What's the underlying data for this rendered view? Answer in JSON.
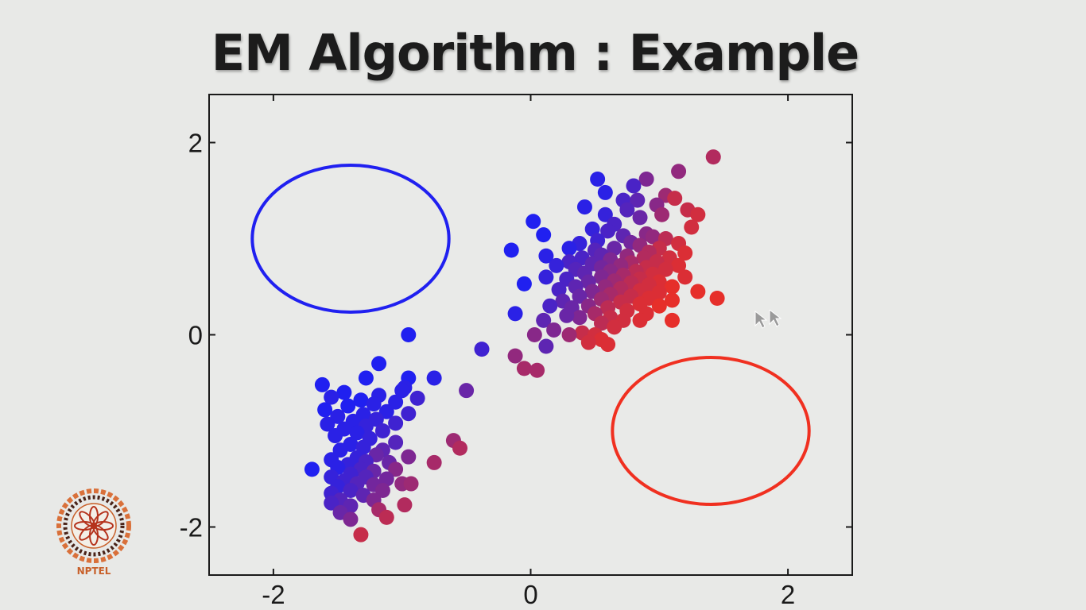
{
  "slide": {
    "title": "EM Algorithm : Example",
    "logo_text": "NPTEL"
  },
  "colors": {
    "background": "#e8e9e7",
    "cluster_a": "#2020f0",
    "cluster_b": "#f03020"
  },
  "chart_data": {
    "type": "scatter",
    "title": "",
    "xlabel": "",
    "ylabel": "",
    "xlim": [
      -2.5,
      2.5
    ],
    "ylim": [
      -2.5,
      2.5
    ],
    "xticks": [
      -2,
      0,
      2
    ],
    "yticks": [
      -2,
      0,
      2
    ],
    "xtick_labels": [
      "-2",
      "0",
      "2"
    ],
    "ytick_labels": [
      "-2",
      "0",
      "2"
    ],
    "grid": false,
    "points": [
      [
        1.42,
        1.85,
        0.7
      ],
      [
        1.15,
        1.7,
        0.55
      ],
      [
        0.9,
        1.62,
        0.45
      ],
      [
        0.52,
        1.62,
        0.05
      ],
      [
        0.8,
        1.55,
        0.2
      ],
      [
        0.58,
        1.48,
        0.05
      ],
      [
        1.05,
        1.45,
        0.6
      ],
      [
        1.12,
        1.42,
        0.8
      ],
      [
        0.72,
        1.4,
        0.2
      ],
      [
        0.83,
        1.4,
        0.3
      ],
      [
        0.98,
        1.35,
        0.5
      ],
      [
        0.42,
        1.33,
        0.05
      ],
      [
        0.75,
        1.3,
        0.25
      ],
      [
        1.22,
        1.3,
        0.8
      ],
      [
        1.3,
        1.25,
        0.85
      ],
      [
        1.02,
        1.25,
        0.6
      ],
      [
        0.58,
        1.25,
        0.1
      ],
      [
        0.85,
        1.22,
        0.35
      ],
      [
        0.02,
        1.18,
        0.0
      ],
      [
        0.65,
        1.15,
        0.2
      ],
      [
        1.25,
        1.12,
        0.85
      ],
      [
        0.48,
        1.1,
        0.1
      ],
      [
        0.6,
        1.08,
        0.2
      ],
      [
        0.9,
        1.05,
        0.5
      ],
      [
        0.1,
        1.04,
        0.0
      ],
      [
        0.72,
        1.03,
        0.3
      ],
      [
        0.95,
        1.02,
        0.55
      ],
      [
        1.05,
        1.0,
        0.75
      ],
      [
        0.52,
        0.98,
        0.15
      ],
      [
        0.78,
        0.96,
        0.4
      ],
      [
        0.38,
        0.95,
        0.1
      ],
      [
        1.15,
        0.95,
        0.85
      ],
      [
        0.85,
        0.93,
        0.55
      ],
      [
        0.3,
        0.9,
        0.05
      ],
      [
        -0.15,
        0.88,
        0.0
      ],
      [
        0.65,
        0.9,
        0.35
      ],
      [
        1.0,
        0.9,
        0.8
      ],
      [
        0.5,
        0.88,
        0.25
      ],
      [
        0.92,
        0.86,
        0.7
      ],
      [
        1.2,
        0.85,
        0.9
      ],
      [
        0.55,
        0.83,
        0.3
      ],
      [
        0.75,
        0.82,
        0.55
      ],
      [
        0.12,
        0.82,
        0.05
      ],
      [
        0.4,
        0.8,
        0.2
      ],
      [
        0.88,
        0.8,
        0.7
      ],
      [
        1.08,
        0.8,
        0.85
      ],
      [
        0.62,
        0.78,
        0.45
      ],
      [
        0.3,
        0.76,
        0.2
      ],
      [
        0.98,
        0.76,
        0.8
      ],
      [
        0.78,
        0.75,
        0.65
      ],
      [
        0.48,
        0.74,
        0.3
      ],
      [
        1.15,
        0.72,
        0.9
      ],
      [
        0.2,
        0.72,
        0.1
      ],
      [
        0.7,
        0.72,
        0.55
      ],
      [
        0.9,
        0.7,
        0.8
      ],
      [
        0.55,
        0.7,
        0.4
      ],
      [
        0.35,
        0.68,
        0.25
      ],
      [
        1.05,
        0.68,
        0.85
      ],
      [
        0.82,
        0.66,
        0.75
      ],
      [
        0.62,
        0.66,
        0.5
      ],
      [
        0.42,
        0.64,
        0.3
      ],
      [
        0.95,
        0.63,
        0.85
      ],
      [
        0.72,
        0.62,
        0.65
      ],
      [
        0.12,
        0.6,
        0.1
      ],
      [
        1.2,
        0.6,
        0.9
      ],
      [
        0.55,
        0.6,
        0.45
      ],
      [
        0.85,
        0.58,
        0.8
      ],
      [
        0.28,
        0.58,
        0.2
      ],
      [
        0.65,
        0.56,
        0.6
      ],
      [
        1.0,
        0.55,
        0.9
      ],
      [
        0.45,
        0.55,
        0.35
      ],
      [
        -0.05,
        0.53,
        0.0
      ],
      [
        0.78,
        0.54,
        0.75
      ],
      [
        0.92,
        0.52,
        0.85
      ],
      [
        0.35,
        0.5,
        0.3
      ],
      [
        0.58,
        0.5,
        0.55
      ],
      [
        1.1,
        0.5,
        0.95
      ],
      [
        0.7,
        0.48,
        0.7
      ],
      [
        0.22,
        0.47,
        0.2
      ],
      [
        0.85,
        0.46,
        0.85
      ],
      [
        0.48,
        0.45,
        0.45
      ],
      [
        1.0,
        0.44,
        0.9
      ],
      [
        0.62,
        0.42,
        0.65
      ],
      [
        1.3,
        0.45,
        0.95
      ],
      [
        0.78,
        0.4,
        0.8
      ],
      [
        0.38,
        0.4,
        0.35
      ],
      [
        0.92,
        0.38,
        0.9
      ],
      [
        1.45,
        0.38,
        0.95
      ],
      [
        0.55,
        0.37,
        0.6
      ],
      [
        0.25,
        0.35,
        0.3
      ],
      [
        1.1,
        0.36,
        0.95
      ],
      [
        0.7,
        0.34,
        0.8
      ],
      [
        0.85,
        0.32,
        0.9
      ],
      [
        0.45,
        0.3,
        0.5
      ],
      [
        1.0,
        0.3,
        0.95
      ],
      [
        0.6,
        0.28,
        0.75
      ],
      [
        0.32,
        0.28,
        0.35
      ],
      [
        0.15,
        0.3,
        0.2
      ],
      [
        0.75,
        0.25,
        0.85
      ],
      [
        0.5,
        0.22,
        0.65
      ],
      [
        0.9,
        0.22,
        0.9
      ],
      [
        0.62,
        0.18,
        0.8
      ],
      [
        0.38,
        0.18,
        0.45
      ],
      [
        -0.12,
        0.22,
        0.05
      ],
      [
        0.28,
        0.2,
        0.35
      ],
      [
        0.72,
        0.15,
        0.85
      ],
      [
        0.85,
        0.15,
        0.9
      ],
      [
        1.1,
        0.15,
        0.95
      ],
      [
        0.55,
        0.12,
        0.75
      ],
      [
        0.1,
        0.15,
        0.3
      ],
      [
        0.65,
        0.08,
        0.85
      ],
      [
        0.18,
        0.05,
        0.45
      ],
      [
        0.4,
        0.02,
        0.8
      ],
      [
        0.5,
        0.0,
        0.85
      ],
      [
        0.3,
        0.0,
        0.6
      ],
      [
        0.03,
        0.0,
        0.5
      ],
      [
        0.55,
        -0.05,
        0.9
      ],
      [
        0.45,
        -0.08,
        0.85
      ],
      [
        0.12,
        -0.12,
        0.3
      ],
      [
        0.6,
        -0.1,
        0.9
      ],
      [
        -0.38,
        -0.15,
        0.15
      ],
      [
        -0.12,
        -0.22,
        0.55
      ],
      [
        -0.05,
        -0.35,
        0.65
      ],
      [
        0.05,
        -0.37,
        0.65
      ],
      [
        -0.95,
        0.0,
        0.0
      ],
      [
        -1.18,
        -0.3,
        0.0
      ],
      [
        -0.75,
        -0.45,
        0.05
      ],
      [
        -0.95,
        -0.45,
        0.0
      ],
      [
        -1.28,
        -0.45,
        0.0
      ],
      [
        -1.62,
        -0.52,
        0.0
      ],
      [
        -0.5,
        -0.58,
        0.35
      ],
      [
        -0.98,
        -0.55,
        0.05
      ],
      [
        -1.0,
        -0.58,
        0.05
      ],
      [
        -1.45,
        -0.6,
        0.0
      ],
      [
        -1.55,
        -0.65,
        0.05
      ],
      [
        -1.18,
        -0.63,
        0.05
      ],
      [
        -0.88,
        -0.66,
        0.15
      ],
      [
        -1.32,
        -0.68,
        0.0
      ],
      [
        -1.05,
        -0.7,
        0.05
      ],
      [
        -1.22,
        -0.72,
        0.05
      ],
      [
        -1.42,
        -0.74,
        0.0
      ],
      [
        -1.6,
        -0.78,
        0.0
      ],
      [
        -1.12,
        -0.8,
        0.05
      ],
      [
        -0.95,
        -0.82,
        0.15
      ],
      [
        -1.3,
        -0.83,
        0.05
      ],
      [
        -1.5,
        -0.85,
        0.05
      ],
      [
        -1.2,
        -0.88,
        0.1
      ],
      [
        -1.38,
        -0.9,
        0.05
      ],
      [
        -1.05,
        -0.92,
        0.15
      ],
      [
        -1.58,
        -0.93,
        0.05
      ],
      [
        -1.28,
        -0.95,
        0.1
      ],
      [
        -1.45,
        -0.98,
        0.05
      ],
      [
        -1.15,
        -1.0,
        0.15
      ],
      [
        -1.35,
        -1.02,
        0.05
      ],
      [
        -1.52,
        -1.05,
        0.05
      ],
      [
        -1.25,
        -1.08,
        0.1
      ],
      [
        -0.6,
        -1.1,
        0.6
      ],
      [
        -1.05,
        -1.12,
        0.25
      ],
      [
        -1.4,
        -1.14,
        0.05
      ],
      [
        -1.3,
        -1.17,
        0.1
      ],
      [
        -0.55,
        -1.18,
        0.7
      ],
      [
        -1.15,
        -1.2,
        0.3
      ],
      [
        -1.48,
        -1.2,
        0.05
      ],
      [
        -1.2,
        -1.25,
        0.35
      ],
      [
        -1.35,
        -1.28,
        0.1
      ],
      [
        -0.95,
        -1.27,
        0.45
      ],
      [
        -1.55,
        -1.3,
        0.05
      ],
      [
        -1.28,
        -1.32,
        0.2
      ],
      [
        -1.42,
        -1.35,
        0.1
      ],
      [
        -1.1,
        -1.33,
        0.35
      ],
      [
        -0.75,
        -1.33,
        0.65
      ],
      [
        -1.5,
        -1.38,
        0.05
      ],
      [
        -1.32,
        -1.4,
        0.2
      ],
      [
        -1.7,
        -1.4,
        0.0
      ],
      [
        -1.22,
        -1.42,
        0.35
      ],
      [
        -1.05,
        -1.4,
        0.5
      ],
      [
        -1.4,
        -1.45,
        0.15
      ],
      [
        -1.55,
        -1.48,
        0.1
      ],
      [
        -1.28,
        -1.48,
        0.25
      ],
      [
        -1.12,
        -1.5,
        0.4
      ],
      [
        -1.45,
        -1.52,
        0.15
      ],
      [
        -1.35,
        -1.55,
        0.25
      ],
      [
        -1.0,
        -1.55,
        0.55
      ],
      [
        -0.93,
        -1.55,
        0.6
      ],
      [
        -1.22,
        -1.56,
        0.4
      ],
      [
        -1.5,
        -1.58,
        0.1
      ],
      [
        -1.15,
        -1.62,
        0.45
      ],
      [
        -1.4,
        -1.62,
        0.2
      ],
      [
        -1.55,
        -1.65,
        0.15
      ],
      [
        -1.3,
        -1.67,
        0.3
      ],
      [
        -1.48,
        -1.72,
        0.25
      ],
      [
        -1.22,
        -1.72,
        0.45
      ],
      [
        -1.55,
        -1.75,
        0.2
      ],
      [
        -0.98,
        -1.77,
        0.7
      ],
      [
        -1.4,
        -1.78,
        0.3
      ],
      [
        -1.18,
        -1.82,
        0.65
      ],
      [
        -1.48,
        -1.85,
        0.35
      ],
      [
        -1.12,
        -1.9,
        0.75
      ],
      [
        -1.4,
        -1.92,
        0.45
      ],
      [
        -1.32,
        -2.08,
        0.8
      ]
    ],
    "ellipses": [
      {
        "name": "cluster-a",
        "center": [
          -1.4,
          1.0
        ],
        "rx": 0.78,
        "ry": 0.78,
        "color": "#2020f0"
      },
      {
        "name": "cluster-b",
        "center": [
          1.4,
          -1.0
        ],
        "rx": 0.78,
        "ry": 0.78,
        "color": "#f03020"
      }
    ]
  }
}
